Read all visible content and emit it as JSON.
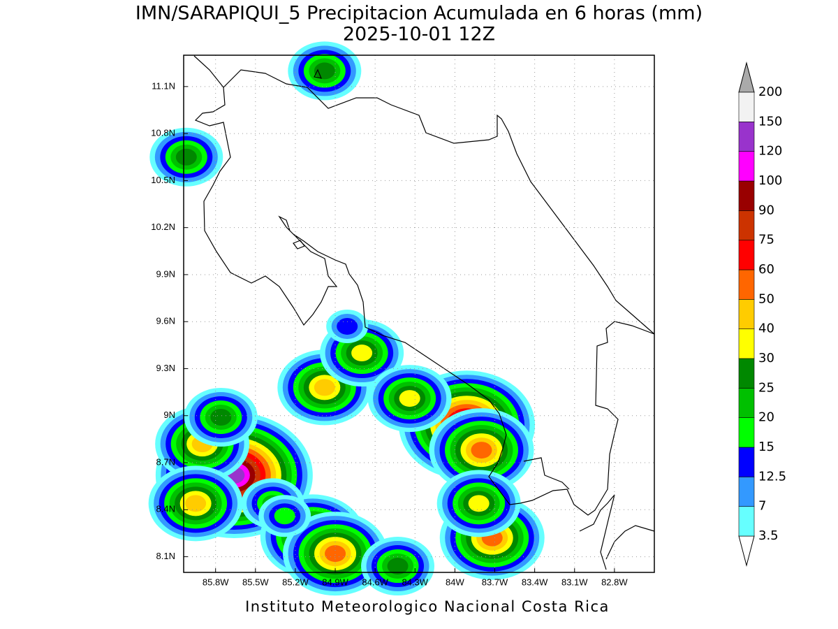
{
  "chart_data": {
    "type": "map",
    "title": "IMN/SARAPIQUI_5 Precipitacion Acumulada en 6 horas (mm)",
    "subtitle": "2025-10-01 12Z",
    "footer": "Instituto Meteorologico Nacional Costa Rica",
    "xlim": [
      -86.04,
      -82.5
    ],
    "ylim": [
      8.0,
      11.3
    ],
    "grid": true,
    "xticks": [
      {
        "value": -85.8,
        "label": "85.8W"
      },
      {
        "value": -85.5,
        "label": "85.5W"
      },
      {
        "value": -85.2,
        "label": "85.2W"
      },
      {
        "value": -84.9,
        "label": "84.9W"
      },
      {
        "value": -84.6,
        "label": "84.6W"
      },
      {
        "value": -84.3,
        "label": "84.3W"
      },
      {
        "value": -84,
        "label": "84W"
      },
      {
        "value": -83.7,
        "label": "83.7W"
      },
      {
        "value": -83.4,
        "label": "83.4W"
      },
      {
        "value": -83.1,
        "label": "83.1W"
      },
      {
        "value": -82.8,
        "label": "82.8W"
      }
    ],
    "yticks": [
      {
        "value": 8.1,
        "label": "8.1N"
      },
      {
        "value": 8.4,
        "label": "8.4N"
      },
      {
        "value": 8.7,
        "label": "8.7N"
      },
      {
        "value": 9,
        "label": "9N"
      },
      {
        "value": 9.3,
        "label": "9.3N"
      },
      {
        "value": 9.6,
        "label": "9.6N"
      },
      {
        "value": 9.9,
        "label": "9.9N"
      },
      {
        "value": 10.2,
        "label": "10.2N"
      },
      {
        "value": 10.5,
        "label": "10.5N"
      },
      {
        "value": 10.8,
        "label": "10.8N"
      },
      {
        "value": 11.1,
        "label": "11.1N"
      }
    ],
    "colorbar": {
      "levels": [
        3.5,
        7,
        12.5,
        15,
        20,
        25,
        30,
        40,
        50,
        60,
        75,
        90,
        100,
        120,
        150,
        200
      ],
      "colors": [
        "#66ffff",
        "#3399ff",
        "#0000ff",
        "#00ff00",
        "#00c000",
        "#008800",
        "#ffff00",
        "#ffcc00",
        "#ff6600",
        "#ff0000",
        "#cc3300",
        "#990000",
        "#ff00ff",
        "#9933cc",
        "#f2f2f2"
      ],
      "under_color": "#ffffff",
      "over_color": "#aaaaaa"
    },
    "cells": [
      {
        "lon": -85.66,
        "lat": 8.62,
        "value": 120
      },
      {
        "lon": -85.9,
        "lat": 8.82,
        "value": 40
      },
      {
        "lon": -85.95,
        "lat": 8.44,
        "value": 40
      },
      {
        "lon": -85.07,
        "lat": 8.23,
        "value": 50
      },
      {
        "lon": -84.9,
        "lat": 8.12,
        "value": 50
      },
      {
        "lon": -83.91,
        "lat": 8.94,
        "value": 90
      },
      {
        "lon": -83.8,
        "lat": 8.78,
        "value": 50
      },
      {
        "lon": -83.72,
        "lat": 8.22,
        "value": 50
      },
      {
        "lon": -83.82,
        "lat": 8.44,
        "value": 30
      },
      {
        "lon": -84.98,
        "lat": 9.18,
        "value": 40
      },
      {
        "lon": -84.7,
        "lat": 9.4,
        "value": 30
      },
      {
        "lon": -84.34,
        "lat": 9.11,
        "value": 30
      },
      {
        "lon": -84.98,
        "lat": 11.2,
        "value": 25
      },
      {
        "lon": -85.37,
        "lat": 8.44,
        "value": 20
      },
      {
        "lon": -84.81,
        "lat": 9.57,
        "value": 12.5
      },
      {
        "lon": -85.76,
        "lat": 8.99,
        "value": 25
      },
      {
        "lon": -86.02,
        "lat": 10.65,
        "value": 25
      },
      {
        "lon": -84.43,
        "lat": 8.04,
        "value": 25
      },
      {
        "lon": -85.28,
        "lat": 8.36,
        "value": 15
      }
    ]
  }
}
